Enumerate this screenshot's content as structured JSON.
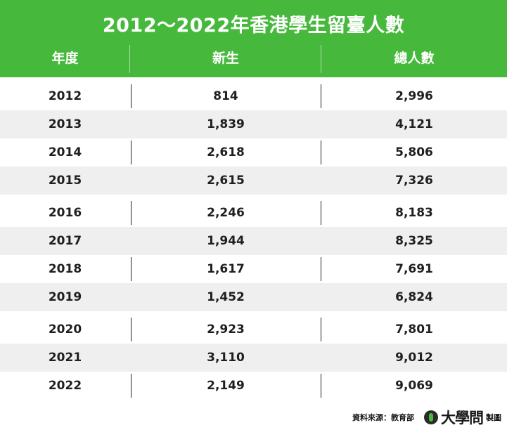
{
  "title": "2012～2022年香港學生留臺人數",
  "columns": [
    "年度",
    "新生",
    "總人數"
  ],
  "rows": [
    {
      "year": "2012",
      "new": "814",
      "total": "2,996"
    },
    {
      "year": "2013",
      "new": "1,839",
      "total": "4,121"
    },
    {
      "year": "2014",
      "new": "2,618",
      "total": "5,806"
    },
    {
      "year": "2015",
      "new": "2,615",
      "total": "7,326"
    },
    {
      "year": "2016",
      "new": "2,246",
      "total": "8,183"
    },
    {
      "year": "2017",
      "new": "1,944",
      "total": "8,325"
    },
    {
      "year": "2018",
      "new": "1,617",
      "total": "7,691"
    },
    {
      "year": "2019",
      "new": "1,452",
      "total": "6,824"
    },
    {
      "year": "2020",
      "new": "2,923",
      "total": "7,801"
    },
    {
      "year": "2021",
      "new": "3,110",
      "total": "9,012"
    },
    {
      "year": "2022",
      "new": "2,149",
      "total": "9,069"
    }
  ],
  "footer": {
    "source": "資料來源：教育部",
    "brand": "大學問",
    "made": "製圖",
    "logo_icon": "brand-logo-icon"
  },
  "colors": {
    "header": "#46b93c",
    "stripe": "#efefef"
  }
}
